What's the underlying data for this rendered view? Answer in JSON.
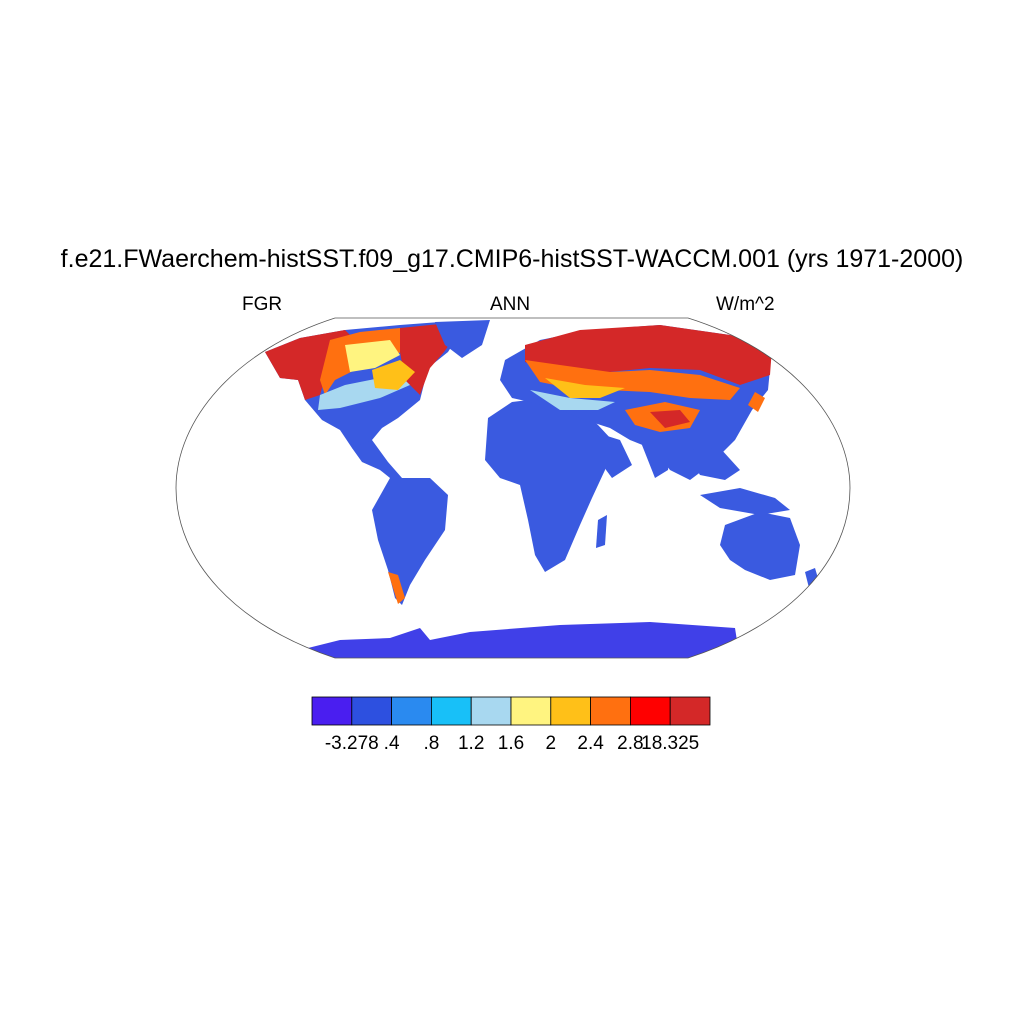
{
  "title": "f.e21.FWaerchem-histSST.f09_g17.CMIP6-histSST-WACCM.001 (yrs 1971-2000)",
  "subtitle_left": "FGR",
  "subtitle_center": "ANN",
  "subtitle_right": "W/m^2",
  "colorbar": {
    "colors": [
      "#4a1ef0",
      "#2d50e0",
      "#2a8af0",
      "#18c0f8",
      "#a8d8f0",
      "#fff480",
      "#ffc018",
      "#ff7010",
      "#ff0000",
      "#d42828"
    ],
    "labels": [
      "-3.278",
      ".4",
      ".8",
      "1.2",
      "1.6",
      "2",
      "2.4",
      "2.8",
      "18.325"
    ]
  },
  "map_colors": {
    "land_default": "#3a5ae0",
    "antarctica": "#4040e8",
    "outline": "#555555"
  }
}
